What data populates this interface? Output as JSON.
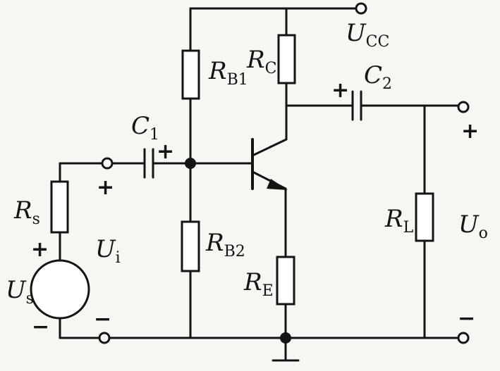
{
  "labels": {
    "ucc": {
      "main": "U",
      "sub": "CC"
    },
    "rb1": {
      "main": "R",
      "sub": "B1"
    },
    "rc": {
      "main": "R",
      "sub": "C"
    },
    "c1": {
      "main": "C",
      "sub": "1"
    },
    "c2": {
      "main": "C",
      "sub": "2"
    },
    "rs": {
      "main": "R",
      "sub": "s"
    },
    "ui": {
      "main": "U",
      "sub": "i"
    },
    "us": {
      "main": "U",
      "sub": "s"
    },
    "rb2": {
      "main": "R",
      "sub": "B2"
    },
    "re": {
      "main": "R",
      "sub": "E"
    },
    "rl": {
      "main": "R",
      "sub": "L"
    },
    "uo": {
      "main": "U",
      "sub": "o"
    }
  },
  "polarity": {
    "plus": "+",
    "minus": "−"
  }
}
